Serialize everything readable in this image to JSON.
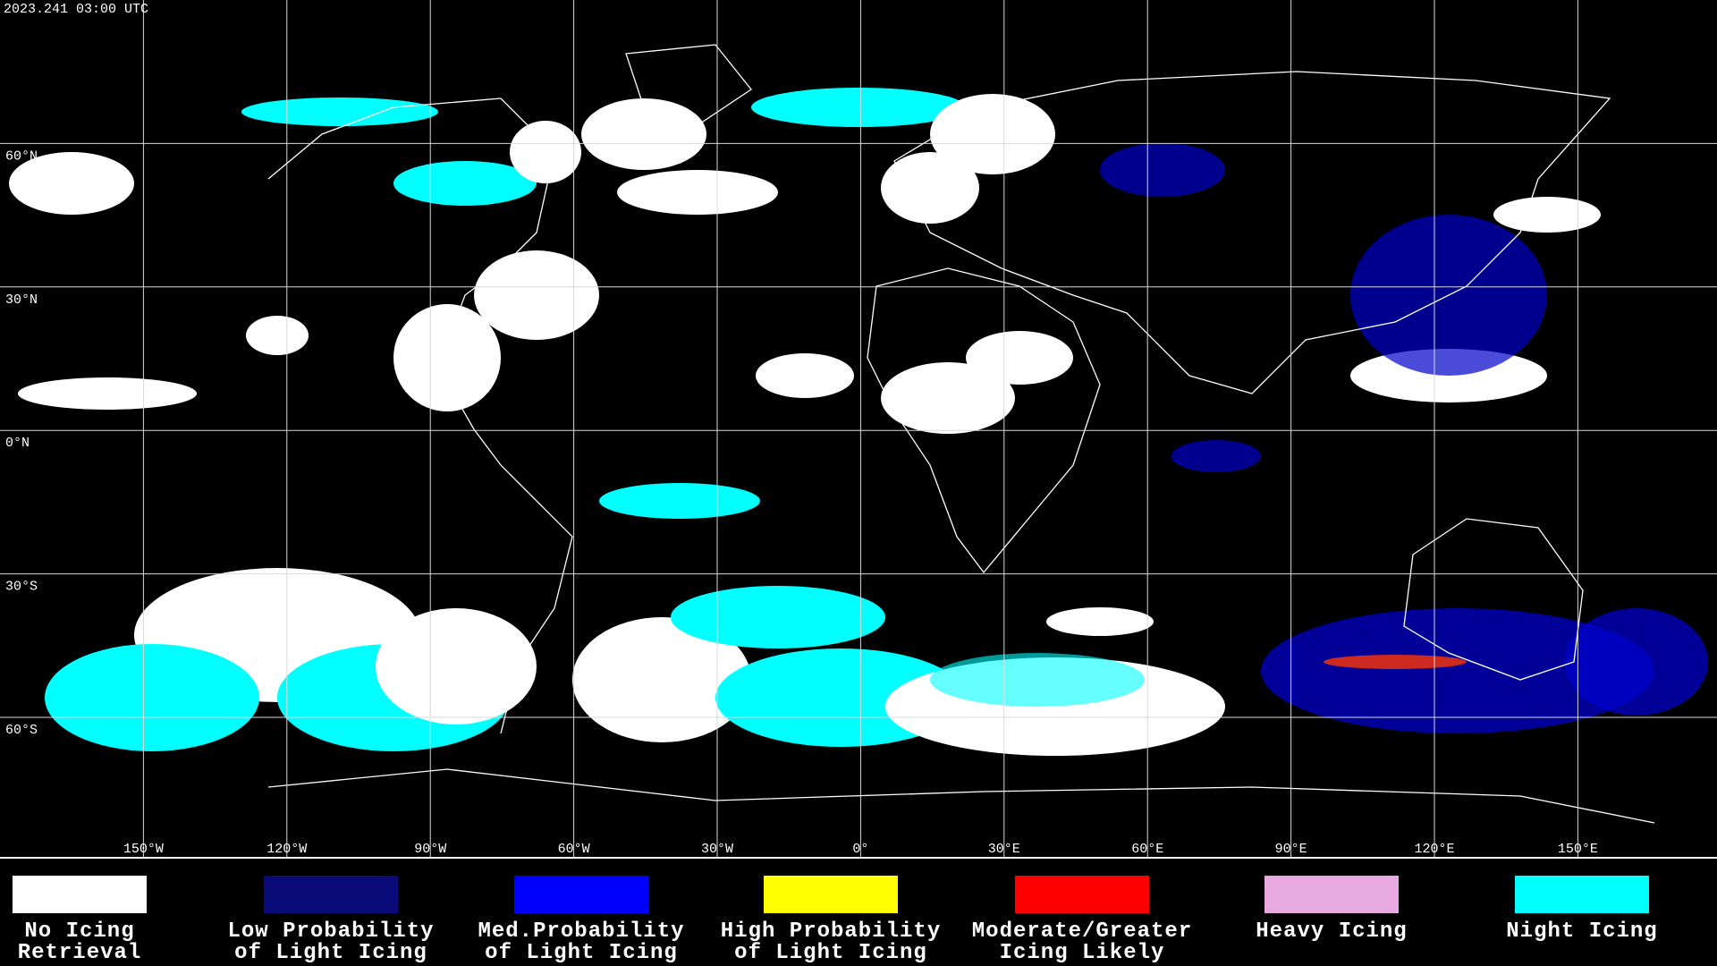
{
  "timestamp": "2023.241 03:00 UTC",
  "map": {
    "lat_labels": [
      "60°N",
      "30°N",
      "0°N",
      "30°S",
      "60°S"
    ],
    "lon_labels": [
      "150°W",
      "120°W",
      "90°W",
      "60°W",
      "30°W",
      "0°",
      "30°E",
      "60°E",
      "90°E",
      "120°E",
      "150°E"
    ]
  },
  "legend": [
    {
      "lines": [
        "No Icing",
        "Retrieval"
      ],
      "color": "#ffffff"
    },
    {
      "lines": [
        "Low Probability",
        "of Light Icing"
      ],
      "color": "#0a0a78"
    },
    {
      "lines": [
        "Med.Probability",
        "of Light Icing"
      ],
      "color": "#0000ff"
    },
    {
      "lines": [
        "High Probability",
        "of Light Icing"
      ],
      "color": "#ffff00"
    },
    {
      "lines": [
        "Moderate/Greater",
        "Icing Likely"
      ],
      "color": "#ff0000"
    },
    {
      "lines": [
        "Heavy Icing"
      ],
      "color": "#e8a8e0"
    },
    {
      "lines": [
        "Night Icing"
      ],
      "color": "#00ffff"
    }
  ]
}
